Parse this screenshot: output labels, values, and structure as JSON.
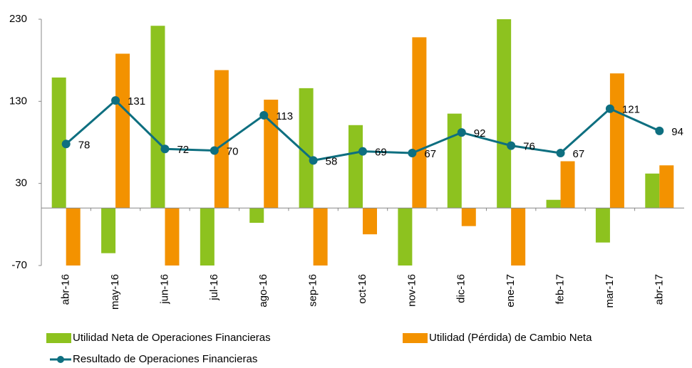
{
  "chart_data": {
    "type": "bar_line",
    "categories": [
      "abr-16",
      "may-16",
      "jun-16",
      "jul-16",
      "ago-16",
      "sep-16",
      "oct-16",
      "nov-16",
      "dic-16",
      "ene-17",
      "feb-17",
      "mar-17",
      "abr-17"
    ],
    "series": [
      {
        "name": "Utilidad Neta de Operaciones Financieras",
        "color": "#8dc21f",
        "kind": "bar",
        "values": [
          159,
          -55,
          222,
          -70,
          -18,
          146,
          101,
          -70,
          115,
          230,
          10,
          -42,
          42
        ]
      },
      {
        "name": "Utilidad (Pérdida) de Cambio Neta",
        "color": "#f39200",
        "kind": "bar",
        "values": [
          -70,
          188,
          -70,
          168,
          132,
          -70,
          -32,
          208,
          -22,
          -70,
          57,
          164,
          52
        ]
      },
      {
        "name": "Resultado de Operaciones Financieras",
        "color": "#0e6f80",
        "kind": "line",
        "values": [
          78,
          131,
          72,
          70,
          113,
          58,
          69,
          67,
          92,
          76,
          67,
          121,
          94
        ]
      }
    ],
    "ylim": [
      -70,
      230
    ],
    "yticks": [
      -70,
      30,
      130,
      230
    ]
  }
}
